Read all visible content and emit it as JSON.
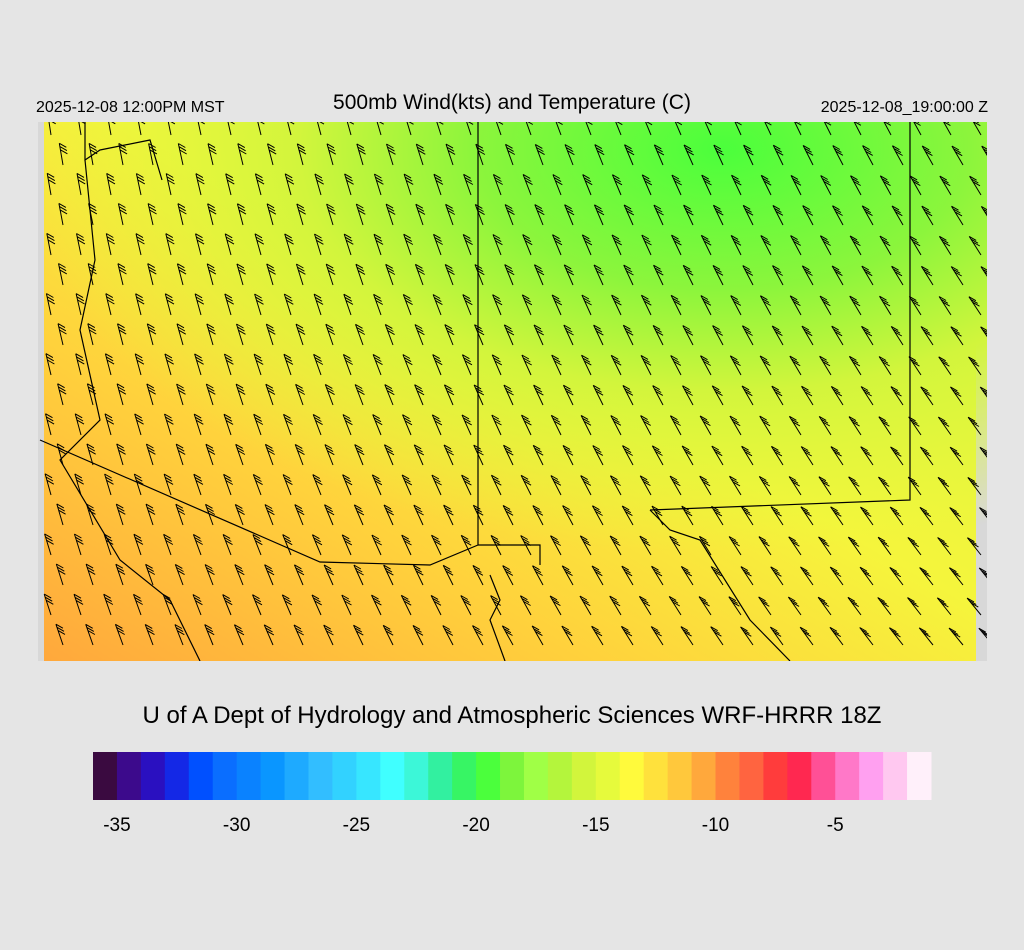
{
  "header": {
    "valid_local": "2025-12-08 12:00PM MST",
    "title": "500mb Wind(kts) and Temperature (C)",
    "valid_utc": "2025-12-08_19:00:00 Z"
  },
  "footer": {
    "credit": "U of A Dept of Hydrology and Atmospheric Sciences WRF-HRRR 18Z"
  },
  "colorbar": {
    "lim": [
      -36,
      -1
    ],
    "ticks": [
      -35,
      -30,
      -25,
      -20,
      -15,
      -10,
      -5
    ],
    "colors": [
      "#3a0a40",
      "#3c0a8c",
      "#2a10c0",
      "#1428e6",
      "#0050ff",
      "#0a6eff",
      "#0a82ff",
      "#0a96ff",
      "#1eaaff",
      "#32beff",
      "#32d2ff",
      "#37e6ff",
      "#40ffff",
      "#3cf7d8",
      "#32f0a0",
      "#37f564",
      "#4bff3c",
      "#7df53c",
      "#a0ff46",
      "#b4f53c",
      "#d2f53c",
      "#e6fa3c",
      "#fffa3c",
      "#ffe13c",
      "#ffc83c",
      "#ffa83c",
      "#ff823c",
      "#ff6440",
      "#ff3c3c",
      "#ff2850",
      "#ff5096",
      "#ff78c8",
      "#ffa0f0",
      "#ffc8f0",
      "#fff0fa"
    ]
  }
}
